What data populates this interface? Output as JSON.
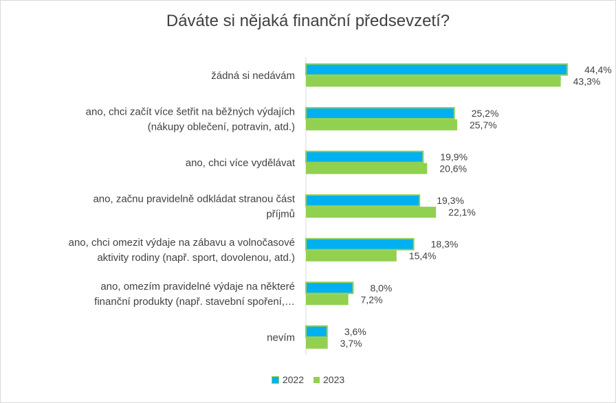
{
  "chart_data": {
    "type": "bar",
    "orientation": "horizontal",
    "title": "Dáváte si nějaká finanční předsevzetí?",
    "categories": [
      [
        "žádná si nedávám"
      ],
      [
        "ano, chci začít více šetřit na běžných výdajích",
        "(nákupy oblečení, potravin, atd.)"
      ],
      [
        "ano, chci více vydělávat"
      ],
      [
        "ano, začnu pravidelně odkládat stranou část",
        "příjmů"
      ],
      [
        "ano, chci omezit výdaje na zábavu a volnočasové",
        "aktivity rodiny (např. sport, dovolenou, atd.)"
      ],
      [
        "ano, omezím pravidelné výdaje na některé",
        "finanční produkty (např. stavební spoření,…"
      ],
      [
        "nevím"
      ]
    ],
    "series": [
      {
        "name": "2022",
        "color": "#00b0f0",
        "values": [
          44.4,
          25.2,
          19.9,
          19.3,
          18.3,
          8.0,
          3.6
        ],
        "labels": [
          "44,4%",
          "25,2%",
          "19,9%",
          "19,3%",
          "18,3%",
          "8,0%",
          "3,6%"
        ]
      },
      {
        "name": "2023",
        "color": "#92d050",
        "values": [
          43.3,
          25.7,
          20.6,
          22.1,
          15.4,
          7.2,
          3.7
        ],
        "labels": [
          "43,3%",
          "25,7%",
          "20,6%",
          "22,1%",
          "15,4%",
          "7,2%",
          "3,7%"
        ]
      }
    ],
    "xlim": [
      0,
      50
    ],
    "grid": false,
    "legend_position": "bottom"
  }
}
